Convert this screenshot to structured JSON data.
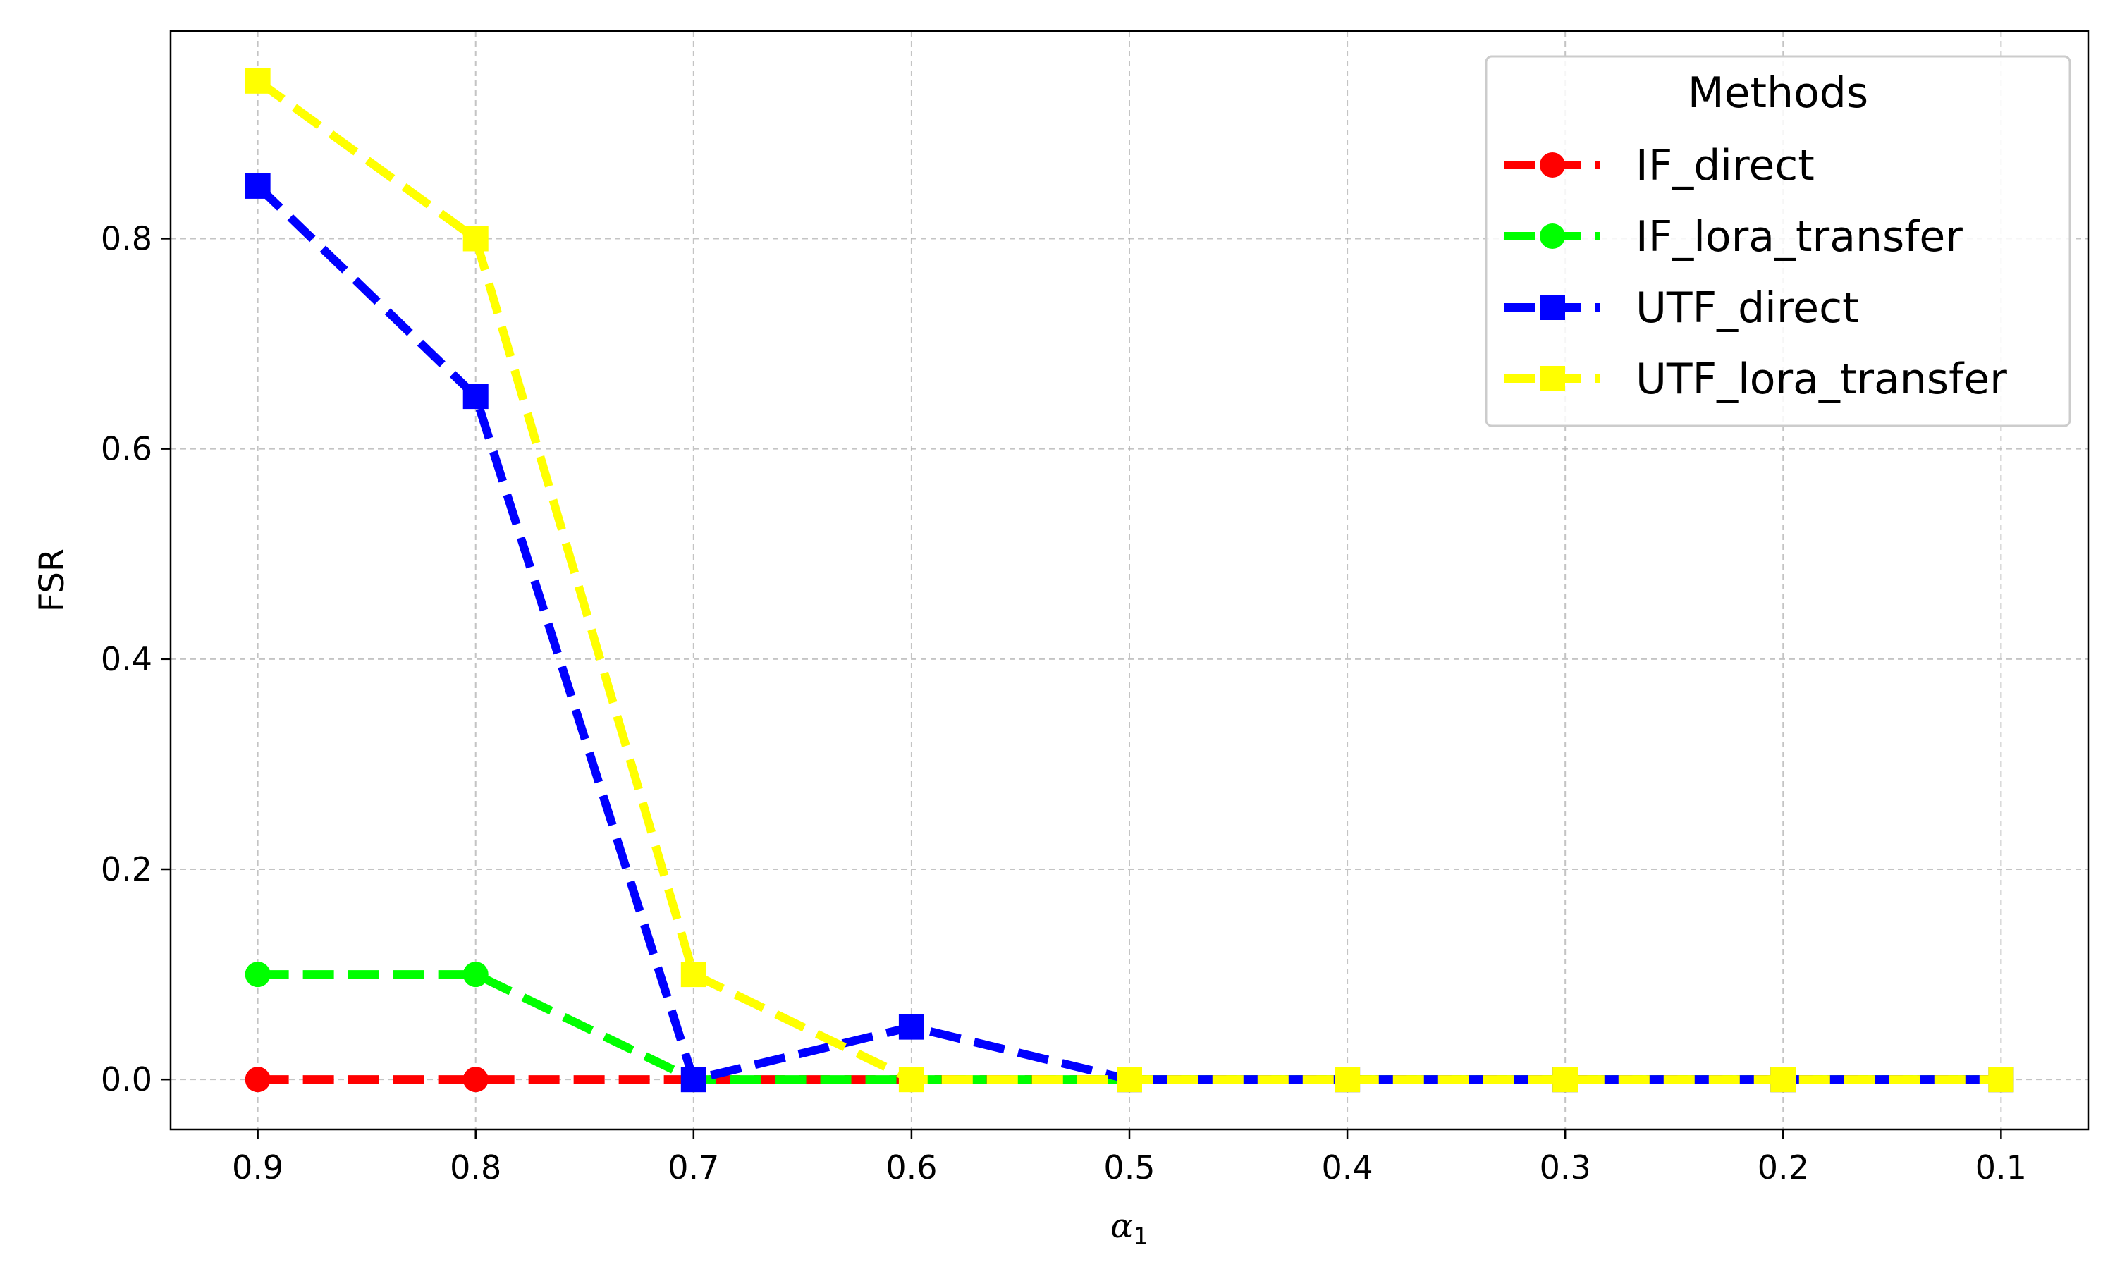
{
  "chart_data": {
    "type": "line",
    "xlabel": "α1",
    "xlabel_symbol": "α",
    "xlabel_subscript": "1",
    "ylabel": "FSR",
    "x": [
      0.9,
      0.8,
      0.7,
      0.6,
      0.5,
      0.4,
      0.3,
      0.2,
      0.1
    ],
    "x_tick_labels": [
      "0.9",
      "0.8",
      "0.7",
      "0.6",
      "0.5",
      "0.4",
      "0.3",
      "0.2",
      "0.1"
    ],
    "xlim": [
      0.94,
      0.06
    ],
    "x_reversed": true,
    "ylim": [
      -0.0475,
      0.9975
    ],
    "y_ticks": [
      0.0,
      0.2,
      0.4,
      0.6,
      0.8
    ],
    "y_tick_labels": [
      "0.0",
      "0.2",
      "0.4",
      "0.6",
      "0.8"
    ],
    "grid": true,
    "legend": {
      "title": "Methods",
      "placement": "top-right"
    },
    "series": [
      {
        "name": "IF_direct",
        "color": "#ff0000",
        "marker": "circle",
        "linestyle": "dashed",
        "values": [
          0,
          0,
          0,
          0,
          0,
          0,
          0,
          0,
          0
        ]
      },
      {
        "name": "IF_lora_transfer",
        "color": "#00ff00",
        "marker": "circle",
        "linestyle": "dashed",
        "values": [
          0.1,
          0.1,
          0,
          0,
          0,
          0,
          0,
          0,
          0
        ]
      },
      {
        "name": "UTF_direct",
        "color": "#0000ff",
        "marker": "square",
        "linestyle": "dashed",
        "values": [
          0.85,
          0.65,
          0,
          0.05,
          0,
          0,
          0,
          0,
          0
        ]
      },
      {
        "name": "UTF_lora_transfer",
        "color": "#ffff00",
        "marker": "square",
        "linestyle": "dashed",
        "values": [
          0.95,
          0.8,
          0.1,
          0,
          0,
          0,
          0,
          0,
          0
        ]
      }
    ]
  }
}
